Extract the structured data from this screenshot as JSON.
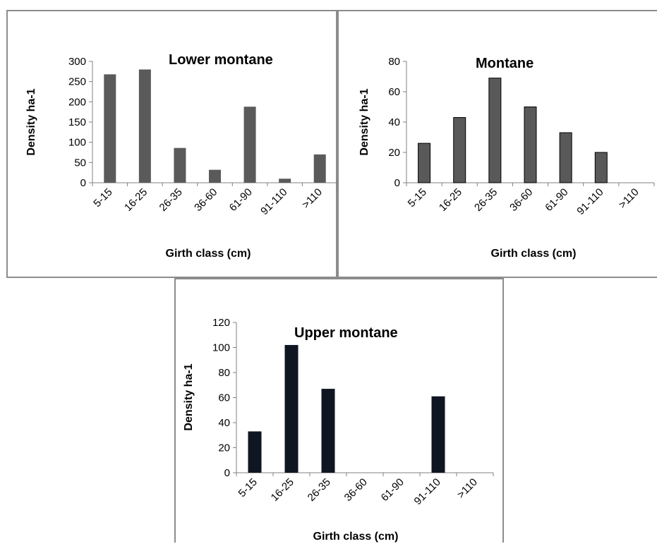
{
  "chart_data": [
    {
      "type": "bar",
      "title": "Lower montane",
      "xlabel": "Girth class (cm)",
      "ylabel": "Density ha-1",
      "categories": [
        "5-15",
        "16-25",
        "26-35",
        "36-60",
        "61-90",
        "91-110",
        ">110"
      ],
      "values": [
        268,
        280,
        86,
        32,
        188,
        10,
        70
      ],
      "ylim": [
        0,
        300
      ],
      "yticks": [
        0,
        50,
        100,
        150,
        200,
        250,
        300
      ],
      "bar_color": "#5a5a5a",
      "bar_outline": false,
      "grid": false
    },
    {
      "type": "bar",
      "title": "Montane",
      "xlabel": "Girth class (cm)",
      "ylabel": "Density ha-1",
      "categories": [
        "5-15",
        "16-25",
        "26-35",
        "36-60",
        "61-90",
        "91-110",
        ">110"
      ],
      "values": [
        26,
        43,
        69,
        50,
        33,
        20,
        0
      ],
      "ylim": [
        0,
        80
      ],
      "yticks": [
        0,
        20,
        40,
        60,
        80
      ],
      "bar_color": "#595959",
      "bar_outline": true,
      "grid": false
    },
    {
      "type": "bar",
      "title": "Upper montane",
      "xlabel": "Girth class (cm)",
      "ylabel": "Density ha-1",
      "categories": [
        "5-15",
        "16-25",
        "26-35",
        "36-60",
        "61-90",
        "91-110",
        ">110"
      ],
      "values": [
        33,
        102,
        67,
        0,
        0,
        61,
        0
      ],
      "ylim": [
        0,
        120
      ],
      "yticks": [
        0,
        20,
        40,
        60,
        80,
        100,
        120
      ],
      "bar_color": "#0f1521",
      "bar_outline": false,
      "grid": false
    }
  ]
}
